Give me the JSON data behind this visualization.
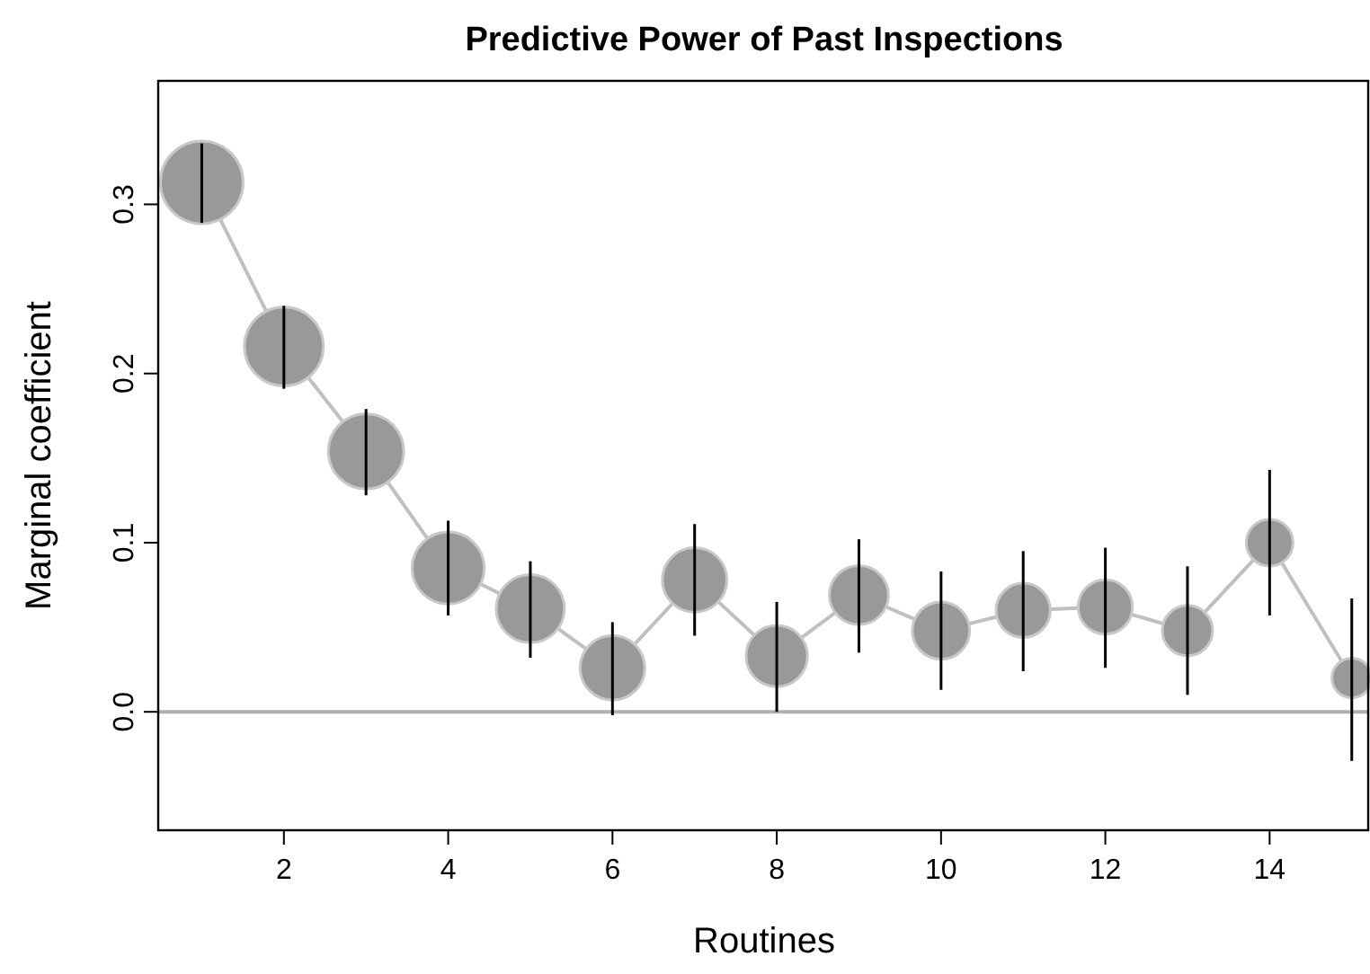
{
  "chart_data": {
    "type": "bubble",
    "title": "Predictive Power of Past Inspections",
    "xlabel": "Routines",
    "ylabel": "Marginal coefficient",
    "x": [
      1,
      2,
      3,
      4,
      5,
      6,
      7,
      8,
      9,
      10,
      11,
      12,
      13,
      14,
      15
    ],
    "xlim": [
      0.47,
      15.2
    ],
    "xticks": [
      2,
      4,
      6,
      8,
      10,
      12,
      14
    ],
    "ylim": [
      -0.07,
      0.373
    ],
    "yticks": [
      {
        "value": 0,
        "label": "0.0"
      },
      {
        "value": 0.1,
        "label": "0.1"
      },
      {
        "value": 0.2,
        "label": "0.2"
      },
      {
        "value": 0.3,
        "label": "0.3"
      }
    ],
    "series": [
      {
        "type": "line",
        "color": "#c0c0c0",
        "values": [
          0.313,
          0.216,
          0.154,
          0.085,
          0.061,
          0.026,
          0.078,
          0.033,
          0.069,
          0.048,
          0.06,
          0.062,
          0.048,
          0.1,
          0.02
        ]
      },
      {
        "color": "#999999",
        "values": [
          0.313,
          0.216,
          0.154,
          0.085,
          0.061,
          0.026,
          0.078,
          0.033,
          0.069,
          0.048,
          0.06,
          0.062,
          0.048,
          0.1,
          0.02
        ],
        "sizes": [
          1,
          0.91,
          0.83,
          0.76,
          0.68,
          0.61,
          0.61,
          0.55,
          0.51,
          0.48,
          0.43,
          0.43,
          0.37,
          0.32,
          0.23
        ],
        "errors": [
          [
            0.289,
            0.336
          ],
          [
            0.191,
            0.24
          ],
          [
            0.128,
            0.179
          ],
          [
            0.057,
            0.113
          ],
          [
            0.032,
            0.089
          ],
          [
            -0.002,
            0.053
          ],
          [
            0.045,
            0.111
          ],
          [
            0.0,
            0.065
          ],
          [
            0.035,
            0.102
          ],
          [
            0.013,
            0.083
          ],
          [
            0.024,
            0.095
          ],
          [
            0.026,
            0.097
          ],
          [
            0.01,
            0.086
          ],
          [
            0.057,
            0.143
          ],
          [
            -0.029,
            0.067
          ]
        ]
      }
    ],
    "ref_lines": [
      {
        "axis": "y",
        "value": 0,
        "color": "#b0b0b0"
      }
    ],
    "grid": false
  }
}
